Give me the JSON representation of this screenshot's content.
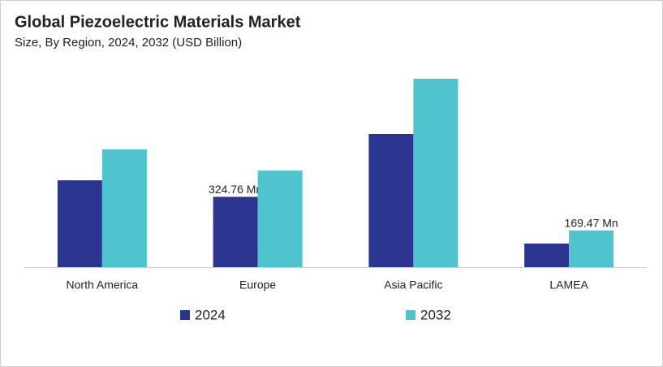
{
  "chart_data": {
    "type": "bar",
    "title": "Global Piezoelectric Materials Market",
    "subtitle": "Size, By Region, 2024, 2032 (USD Billion)",
    "categories": [
      "North America",
      "Europe",
      "Asia Pacific",
      "LAMEA"
    ],
    "series": [
      {
        "name": "2024",
        "color": "#2a358f",
        "values": [
          401,
          324.76,
          615,
          109
        ],
        "value_labels": [
          null,
          "324.76 Mn",
          null,
          null
        ]
      },
      {
        "name": "2032",
        "color": "#4fc4cf",
        "values": [
          544,
          446,
          870,
          169.47
        ],
        "value_labels": [
          null,
          null,
          null,
          "169.47 Mn"
        ]
      }
    ]
  }
}
